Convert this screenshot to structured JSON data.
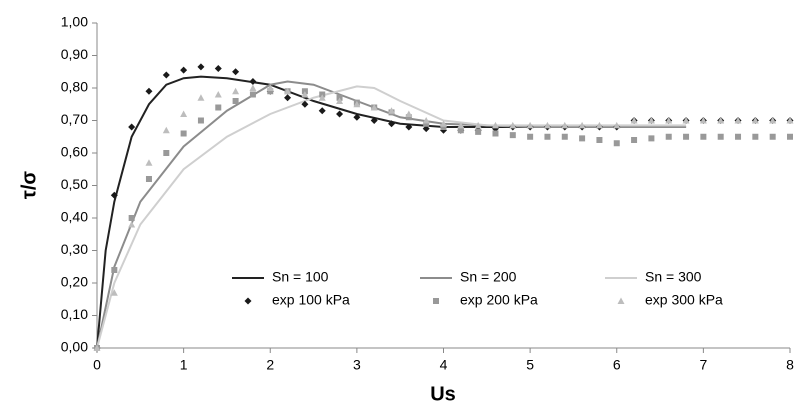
{
  "chart_data": {
    "type": "line",
    "x_label": "Us",
    "y_label": "τ/σ",
    "xlim": [
      0,
      8
    ],
    "ylim": [
      0,
      1
    ],
    "xticks": [
      0,
      1,
      2,
      3,
      4,
      5,
      6,
      7,
      8
    ],
    "yticks": [
      {
        "value": 0,
        "label": "0,00"
      },
      {
        "value": 0.1,
        "label": "0,10"
      },
      {
        "value": 0.2,
        "label": "0,20"
      },
      {
        "value": 0.3,
        "label": "0,30"
      },
      {
        "value": 0.4,
        "label": "0,40"
      },
      {
        "value": 0.5,
        "label": "0,50"
      },
      {
        "value": 0.6,
        "label": "0,60"
      },
      {
        "value": 0.7,
        "label": "0,70"
      },
      {
        "value": 0.8,
        "label": "0,80"
      },
      {
        "value": 0.9,
        "label": "0,90"
      },
      {
        "value": 1,
        "label": "1,00"
      }
    ],
    "legend": "lower center",
    "series": [
      {
        "name": "Sn = 100",
        "color": "#222222",
        "mode": "line",
        "x": [
          0,
          0.1,
          0.2,
          0.4,
          0.6,
          0.8,
          1.0,
          1.2,
          1.5,
          2.0,
          2.5,
          3.0,
          3.5,
          4.0,
          5.0,
          6.0,
          6.8
        ],
        "values": [
          0,
          0.3,
          0.45,
          0.65,
          0.75,
          0.81,
          0.83,
          0.835,
          0.83,
          0.81,
          0.76,
          0.72,
          0.69,
          0.68,
          0.68,
          0.68,
          0.68
        ]
      },
      {
        "name": "Sn = 200",
        "color": "#8c8c8c",
        "mode": "line",
        "x": [
          0,
          0.2,
          0.5,
          1.0,
          1.5,
          2.0,
          2.2,
          2.5,
          3.0,
          3.5,
          4.0,
          5.0,
          6.0,
          6.8
        ],
        "values": [
          0,
          0.25,
          0.45,
          0.62,
          0.73,
          0.81,
          0.82,
          0.81,
          0.76,
          0.71,
          0.69,
          0.68,
          0.68,
          0.68
        ]
      },
      {
        "name": "Sn = 300",
        "color": "#cfcfcf",
        "mode": "line",
        "x": [
          0,
          0.2,
          0.5,
          1.0,
          1.5,
          2.0,
          2.5,
          3.0,
          3.2,
          3.5,
          4.0,
          4.5,
          5.0,
          6.0,
          6.8
        ],
        "values": [
          0,
          0.2,
          0.38,
          0.55,
          0.65,
          0.72,
          0.77,
          0.805,
          0.8,
          0.76,
          0.7,
          0.685,
          0.685,
          0.685,
          0.685
        ]
      },
      {
        "name": "exp 100 kPa",
        "color": "#1a1a1a",
        "mode": "markers",
        "marker": "diamond",
        "x": [
          0,
          0.2,
          0.4,
          0.6,
          0.8,
          1.0,
          1.2,
          1.4,
          1.6,
          1.8,
          2.0,
          2.2,
          2.4,
          2.6,
          2.8,
          3.0,
          3.2,
          3.4,
          3.6,
          3.8,
          4.0,
          4.2,
          4.4,
          4.6,
          4.8,
          5.0,
          5.2,
          5.4,
          5.6,
          5.8,
          6.0,
          6.2,
          6.4,
          6.6,
          6.8,
          7.0,
          7.2,
          7.4,
          7.6,
          7.8,
          8.0
        ],
        "values": [
          0,
          0.47,
          0.68,
          0.79,
          0.84,
          0.855,
          0.865,
          0.86,
          0.85,
          0.82,
          0.79,
          0.77,
          0.75,
          0.73,
          0.72,
          0.71,
          0.7,
          0.69,
          0.68,
          0.675,
          0.67,
          0.67,
          0.67,
          0.675,
          0.68,
          0.68,
          0.68,
          0.68,
          0.68,
          0.68,
          0.68,
          0.7,
          0.7,
          0.7,
          0.7,
          0.7,
          0.7,
          0.7,
          0.7,
          0.7,
          0.7
        ]
      },
      {
        "name": "exp 200 kPa",
        "color": "#999999",
        "mode": "markers",
        "marker": "square",
        "x": [
          0,
          0.2,
          0.4,
          0.6,
          0.8,
          1.0,
          1.2,
          1.4,
          1.6,
          1.8,
          2.0,
          2.2,
          2.4,
          2.6,
          2.8,
          3.0,
          3.2,
          3.4,
          3.6,
          3.8,
          4.0,
          4.2,
          4.4,
          4.6,
          4.8,
          5.0,
          5.2,
          5.4,
          5.6,
          5.8,
          6.0,
          6.2,
          6.4,
          6.6,
          6.8,
          7.0,
          7.2,
          7.4,
          7.6,
          7.8,
          8.0
        ],
        "values": [
          0,
          0.24,
          0.4,
          0.52,
          0.6,
          0.66,
          0.7,
          0.74,
          0.76,
          0.78,
          0.79,
          0.79,
          0.79,
          0.78,
          0.77,
          0.755,
          0.74,
          0.725,
          0.71,
          0.69,
          0.68,
          0.67,
          0.665,
          0.66,
          0.655,
          0.65,
          0.65,
          0.65,
          0.645,
          0.64,
          0.63,
          0.64,
          0.645,
          0.65,
          0.65,
          0.65,
          0.65,
          0.65,
          0.65,
          0.65,
          0.65
        ]
      },
      {
        "name": "exp 300 kPa",
        "color": "#bdbdbd",
        "mode": "markers",
        "marker": "triangle",
        "x": [
          0,
          0.2,
          0.4,
          0.6,
          0.8,
          1.0,
          1.2,
          1.4,
          1.6,
          1.8,
          2.0,
          2.2,
          2.4,
          2.6,
          2.8,
          3.0,
          3.2,
          3.4,
          3.6,
          3.8,
          4.0,
          4.2,
          4.4,
          4.6,
          4.8,
          5.0,
          5.2,
          5.4,
          5.6,
          5.8,
          6.0,
          6.2,
          6.4,
          6.6,
          6.8,
          7.0,
          7.2,
          7.4,
          7.6,
          7.8,
          8.0
        ],
        "values": [
          0,
          0.17,
          0.38,
          0.57,
          0.67,
          0.72,
          0.77,
          0.78,
          0.79,
          0.8,
          0.8,
          0.79,
          0.78,
          0.77,
          0.76,
          0.75,
          0.74,
          0.73,
          0.72,
          0.7,
          0.69,
          0.685,
          0.685,
          0.685,
          0.685,
          0.685,
          0.685,
          0.685,
          0.685,
          0.685,
          0.685,
          0.7,
          0.7,
          0.7,
          0.7,
          0.7,
          0.7,
          0.7,
          0.7,
          0.7,
          0.7
        ]
      }
    ]
  }
}
